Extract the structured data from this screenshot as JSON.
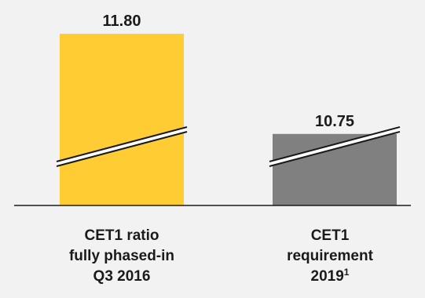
{
  "chart_data": {
    "type": "bar",
    "categories": [
      {
        "lines": [
          "CET1 ratio",
          "fully phased-in",
          "Q3 2016"
        ],
        "superscript": ""
      },
      {
        "lines": [
          "CET1",
          "requirement",
          "2019"
        ],
        "superscript": "1"
      }
    ],
    "values": [
      11.8,
      10.75
    ],
    "value_labels": [
      "11.80",
      "10.75"
    ],
    "colors": [
      "#ffcc33",
      "#808080"
    ],
    "axis_break": true,
    "axis_break_note": "broken y-axis; bars not drawn to zero baseline",
    "ylim_visible": [
      10.0,
      11.85
    ],
    "title": "",
    "xlabel": "",
    "ylabel": ""
  }
}
